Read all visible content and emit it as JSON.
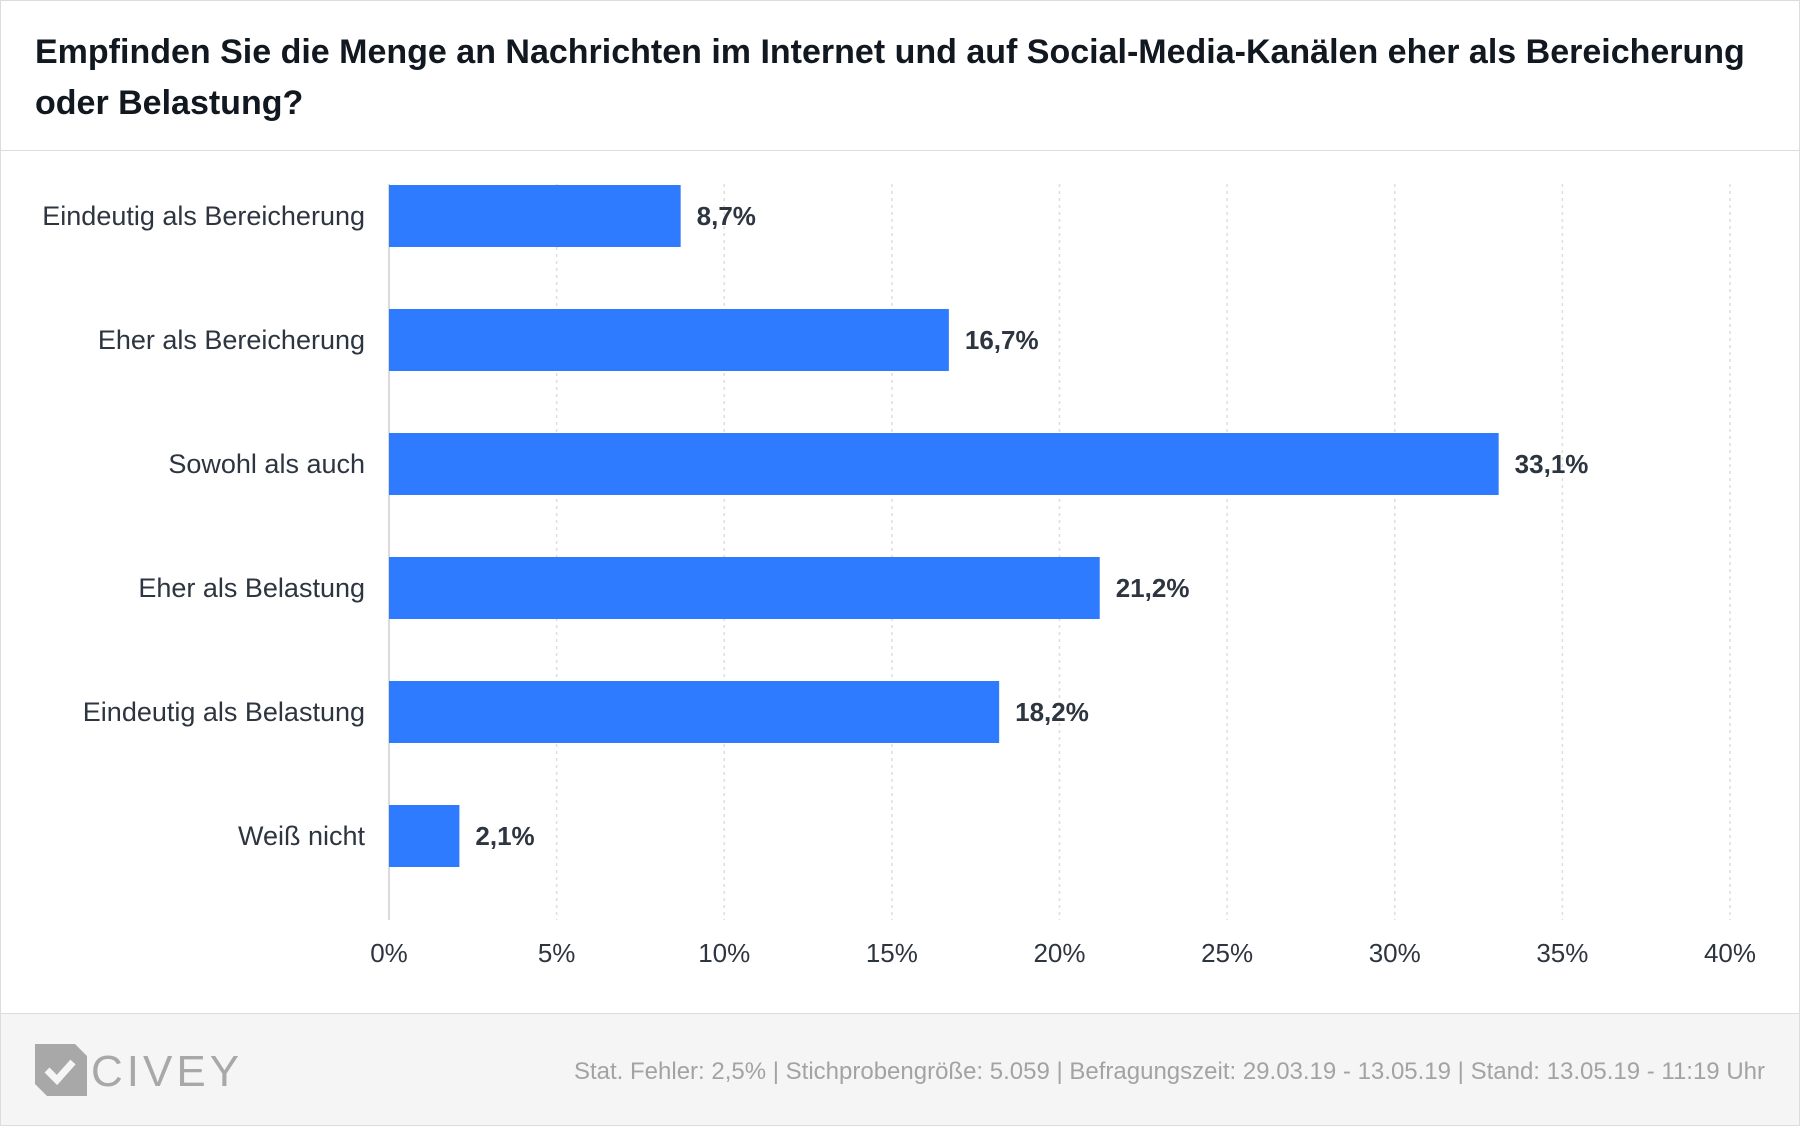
{
  "header": {
    "title": "Empfinden Sie die Menge an Nachrichten im Internet und auf Social-Media-Kanälen eher als Bereicherung oder Belastung?"
  },
  "chart_data": {
    "type": "bar",
    "orientation": "horizontal",
    "title": "Empfinden Sie die Menge an Nachrichten im Internet und auf Social-Media-Kanälen eher als Bereicherung oder Belastung?",
    "categories": [
      "Eindeutig als Bereicherung",
      "Eher als Bereicherung",
      "Sowohl als auch",
      "Eher als Belastung",
      "Eindeutig als Belastung",
      "Weiß nicht"
    ],
    "values": [
      8.7,
      16.7,
      33.1,
      21.2,
      18.2,
      2.1
    ],
    "value_labels": [
      "8,7%",
      "16,7%",
      "33,1%",
      "21,2%",
      "18,2%",
      "2,1%"
    ],
    "xlim": [
      0,
      40
    ],
    "x_ticks": [
      0,
      5,
      10,
      15,
      20,
      25,
      30,
      35,
      40
    ],
    "x_tick_labels": [
      "0%",
      "5%",
      "10%",
      "15%",
      "20%",
      "25%",
      "30%",
      "35%",
      "40%"
    ],
    "xlabel": "",
    "ylabel": "",
    "grid": "vertical dotted",
    "bar_color": "#2f7bff"
  },
  "footer": {
    "brand": "CIVEY",
    "logo_icon": "civey-logo-icon",
    "note": "Stat. Fehler: 2,5% | Stichprobengröße: 5.059 | Befragungszeit: 29.03.19 - 13.05.19 | Stand: 13.05.19 - 11:19 Uhr"
  }
}
